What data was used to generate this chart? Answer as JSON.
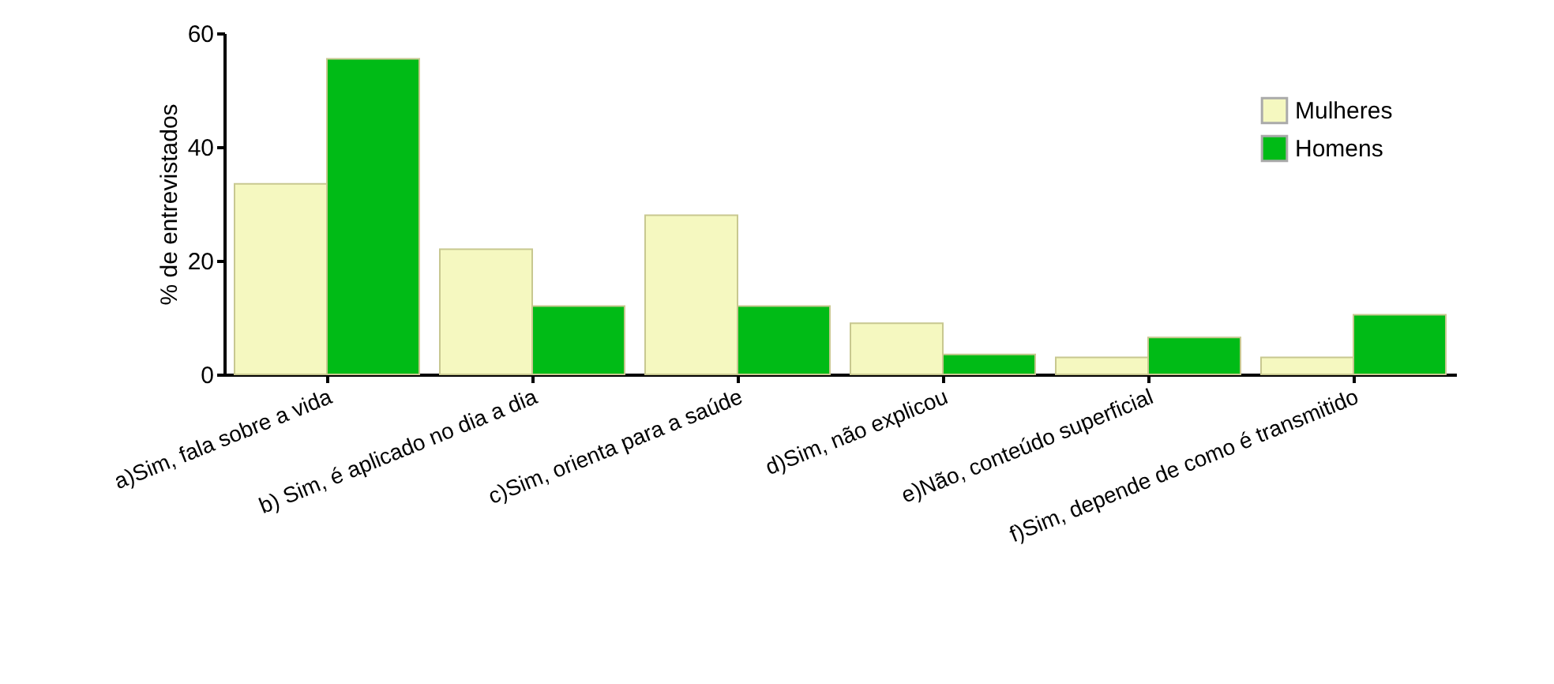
{
  "chart_data": {
    "type": "bar",
    "ylabel": "% de entrevistados",
    "categories": [
      "a)Sim, fala sobre a vida",
      "b) Sim, é aplicado no dia a dia",
      "c)Sim, orienta para a saúde",
      "d)Sim, não explicou",
      "e)Não, conteúdo superficial",
      "f)Sim, depende de como é transmitido"
    ],
    "series": [
      {
        "name": "Mulheres",
        "color": "#f5f8c0",
        "values": [
          33.5,
          22,
          28,
          9,
          3,
          3
        ]
      },
      {
        "name": "Homens",
        "color": "#00bb16",
        "values": [
          55.5,
          12,
          12,
          3.5,
          6.5,
          10.5
        ]
      }
    ],
    "ylim": [
      0,
      60
    ],
    "yticks": [
      0,
      20,
      40,
      60
    ],
    "legend": "top right"
  }
}
